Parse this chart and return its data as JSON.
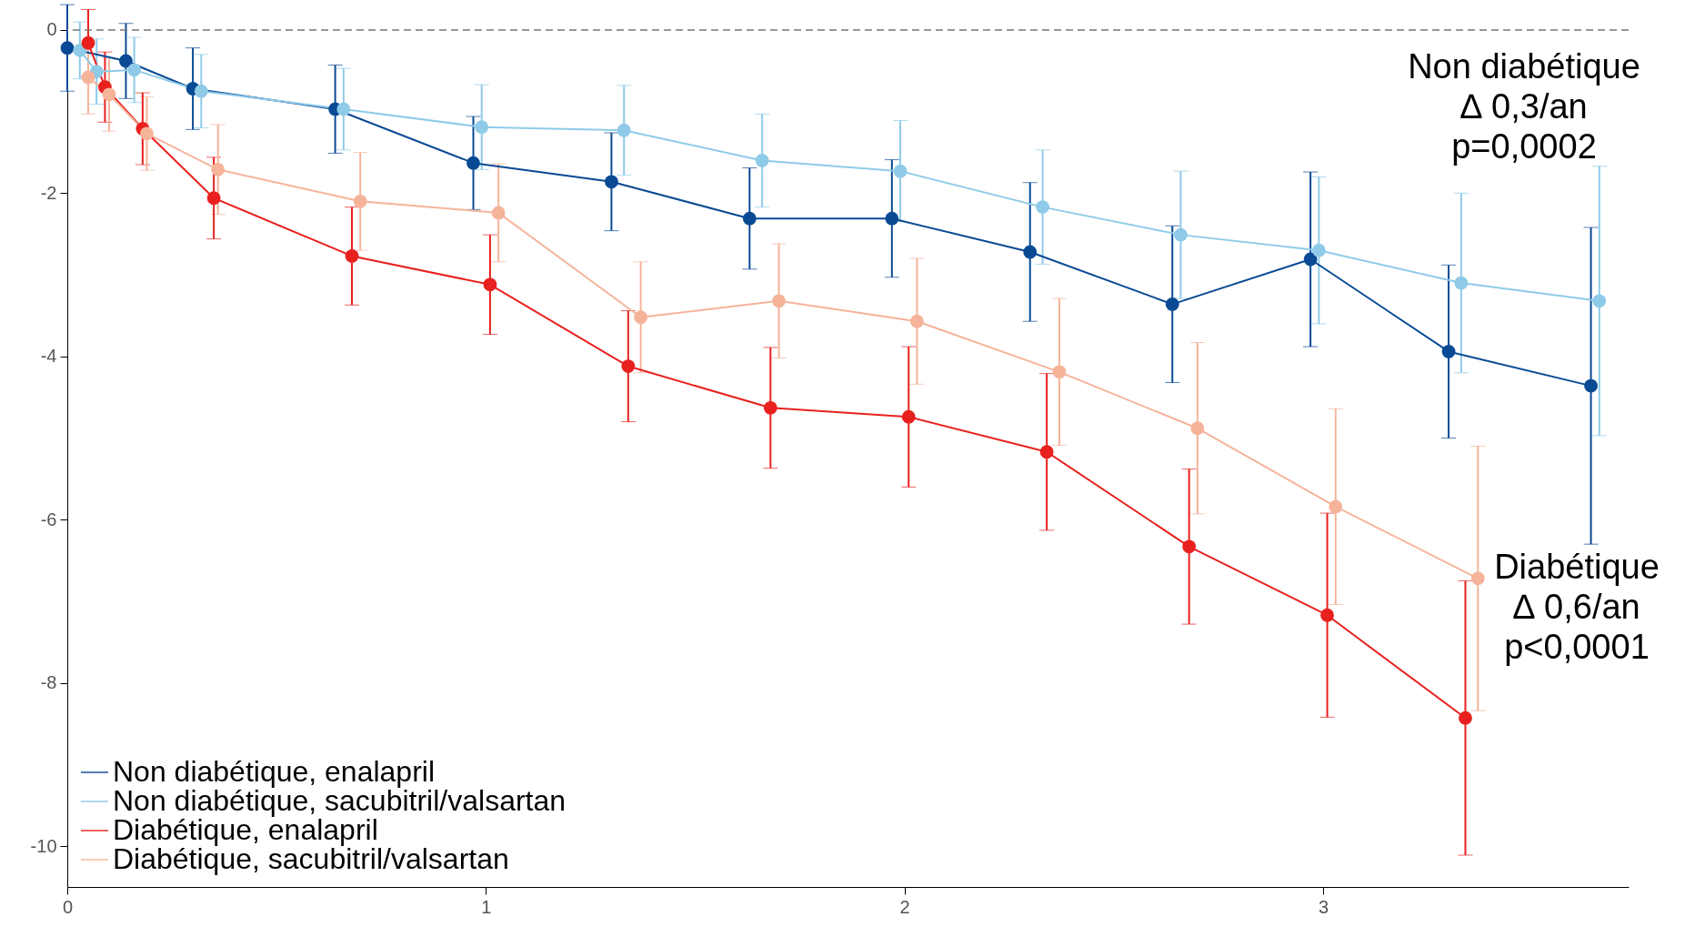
{
  "chart_data": {
    "type": "line",
    "xlim": [
      0,
      3.73
    ],
    "ylim": [
      -10.5,
      0.3
    ],
    "xticks": [
      0,
      1,
      2,
      3
    ],
    "yticks": [
      0,
      -2,
      -4,
      -6,
      -8,
      -10
    ],
    "grid": false,
    "legend": "bottom left",
    "marker": "circle",
    "line_style": "solid",
    "ref_lines": [
      {
        "axis": "y",
        "value": 0,
        "color": "#777777",
        "line_style": "dashed"
      }
    ],
    "annotations": [
      "Non diabétique\n∆ 0,3/an\np=0,0002",
      "Diabétique\n∆ 0,6/an\np<0,0001"
    ],
    "series": [
      {
        "name": "Non diabétique, enalapril",
        "color": "#0a4a94",
        "x": [
          0,
          0.14,
          0.3,
          0.64,
          0.97,
          1.3,
          1.63,
          1.97,
          2.3,
          2.64,
          2.97,
          3.3,
          3.64
        ],
        "values": [
          -0.22,
          -0.38,
          -0.72,
          -0.97,
          -1.63,
          -1.86,
          -2.31,
          -2.31,
          -2.72,
          -3.36,
          -2.81,
          -3.94,
          -4.36
        ],
        "errors": [
          0.53,
          0.46,
          0.5,
          0.54,
          0.57,
          0.6,
          0.62,
          0.72,
          0.85,
          0.96,
          1.07,
          1.06,
          1.94
        ]
      },
      {
        "name": "Non diabétique, sacubitril/valsartan",
        "color": "#8fcbe8",
        "x": [
          0.03,
          0.07,
          0.16,
          0.32,
          0.66,
          0.99,
          1.33,
          1.66,
          1.99,
          2.33,
          2.66,
          2.99,
          3.33,
          3.66
        ],
        "values": [
          -0.25,
          -0.51,
          -0.49,
          -0.75,
          -0.97,
          -1.19,
          -1.23,
          -1.6,
          -1.73,
          -2.17,
          -2.51,
          -2.7,
          -3.1,
          -3.32
        ],
        "errors": [
          0.35,
          0.4,
          0.4,
          0.45,
          0.5,
          0.52,
          0.55,
          0.57,
          0.62,
          0.7,
          0.78,
          0.9,
          1.1,
          1.65
        ]
      },
      {
        "name": "Diabétique, enalapril",
        "color": "#e8211e",
        "x": [
          0.05,
          0.09,
          0.18,
          0.35,
          0.68,
          1.01,
          1.34,
          1.68,
          2.01,
          2.34,
          2.68,
          3.01,
          3.34
        ],
        "values": [
          -0.16,
          -0.7,
          -1.21,
          -2.06,
          -2.77,
          -3.12,
          -4.12,
          -4.63,
          -4.74,
          -5.17,
          -6.33,
          -7.17,
          -8.43
        ],
        "errors": [
          0.41,
          0.43,
          0.44,
          0.5,
          0.6,
          0.61,
          0.68,
          0.74,
          0.86,
          0.96,
          0.95,
          1.25,
          1.68
        ]
      },
      {
        "name": "Diabétique, sacubitril/valsartan",
        "color": "#f5b49a",
        "x": [
          0.05,
          0.1,
          0.19,
          0.36,
          0.7,
          1.03,
          1.37,
          1.7,
          2.03,
          2.37,
          2.7,
          3.03,
          3.37
        ],
        "values": [
          -0.58,
          -0.79,
          -1.27,
          -1.71,
          -2.1,
          -2.24,
          -3.52,
          -3.32,
          -3.57,
          -4.19,
          -4.88,
          -5.84,
          -6.72
        ],
        "errors": [
          0.45,
          0.45,
          0.45,
          0.55,
          0.6,
          0.6,
          0.68,
          0.7,
          0.77,
          0.9,
          1.05,
          1.2,
          1.62
        ]
      }
    ]
  }
}
